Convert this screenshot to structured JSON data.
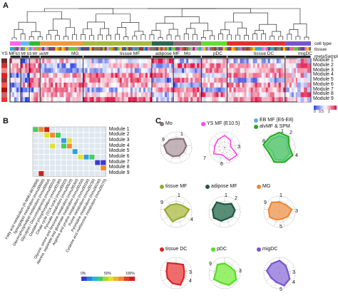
{
  "panels": {
    "a": "A",
    "b": "B",
    "c": "C"
  },
  "panel_a": {
    "track_labels": [
      "cell type",
      "tissue",
      "metaSample"
    ],
    "cell_type_groups": [
      "YS MF",
      "MG",
      "tissue MF",
      "adipose MF",
      "Mo",
      "pDC",
      "tissue DC",
      "migDC"
    ],
    "small_group_labels": [
      "E5 MF",
      "E8 MF",
      "alvMF"
    ],
    "modules": [
      "Module 1",
      "Module 2",
      "Module 3",
      "Module 4",
      "Module 5",
      "Module 6",
      "Module 7",
      "Module 8",
      "Module 9"
    ],
    "colorbar_ticks": [
      "0",
      "0.5",
      "1"
    ]
  },
  "panel_b": {
    "modules": [
      "Module 1",
      "Module 2",
      "Module 3",
      "Module 4",
      "Module 5",
      "Module 6",
      "Module 7",
      "Module 8",
      "Module 9"
    ],
    "pathways": [
      "Fatty acid metabolism (R-MMU-8978868)",
      "Sphingolipid metabolism (mmu00600)",
      "Glycerophospholipid metabolism (mmu00564)",
      "Glycolysis / Gluconeogenesis (mmu00010)",
      "Oxidative phosphorylation (mmu00190)",
      "Citrate cycle (TCA cycle) (mmu00020)",
      "Pyruvate metabolism (mmu00620)",
      "Glycine, serine and threonine metabolism (mmu00260)",
      "Alanine, aspartate and glutamate metabolism (mmu00250)",
      "Arginine and proline metabolism (mmu00330)",
      "Purine metabolism (mmu00230)",
      "Pyrimidine metabolism (mmu00240)",
      "Cysteine and methionine metabolism (mmu00270)"
    ],
    "legend_ticks": [
      "0%",
      "50%",
      "100%"
    ]
  },
  "panel_c": {
    "radars": [
      {
        "title": "Mo",
        "color": "#8a6f7a",
        "fill": "#b8a8ae",
        "nums": [
          "9",
          "1"
        ]
      },
      {
        "title": "YS MF (E10.5)",
        "color": "#ff44ee",
        "fill": "none",
        "nums": [
          "3",
          "7",
          "6"
        ]
      },
      {
        "title": "EB MF (E6-E8)",
        "color": "#66aadd",
        "fill": "#9fd0f0",
        "nums": [
          "1",
          "2",
          "8",
          "4"
        ]
      },
      {
        "title": "alvMF & SPM",
        "color": "#22aa22",
        "fill": "#55cc55",
        "nums": []
      },
      {
        "title": "tissue MF",
        "color": "#99aa33",
        "fill": "#b6c45a",
        "nums": [
          "9",
          "1",
          "4"
        ]
      },
      {
        "title": "adipose MF",
        "color": "#225544",
        "fill": "#3d7a62",
        "nums": [
          "1",
          "2"
        ]
      },
      {
        "title": "MG",
        "color": "#ee8833",
        "fill": "#f0a060",
        "nums": [
          "9",
          "1",
          "3",
          "5"
        ]
      },
      {
        "title": "tissue DC",
        "color": "#dd2222",
        "fill": "#ee5555",
        "nums": [
          "3",
          "4"
        ]
      },
      {
        "title": "pDC",
        "color": "#55dd22",
        "fill": "#88ee55",
        "nums": [
          "9",
          "3"
        ]
      },
      {
        "title": "migDC",
        "color": "#7755cc",
        "fill": "#9a80dd",
        "nums": [
          "3",
          "4",
          "5"
        ]
      }
    ]
  }
}
